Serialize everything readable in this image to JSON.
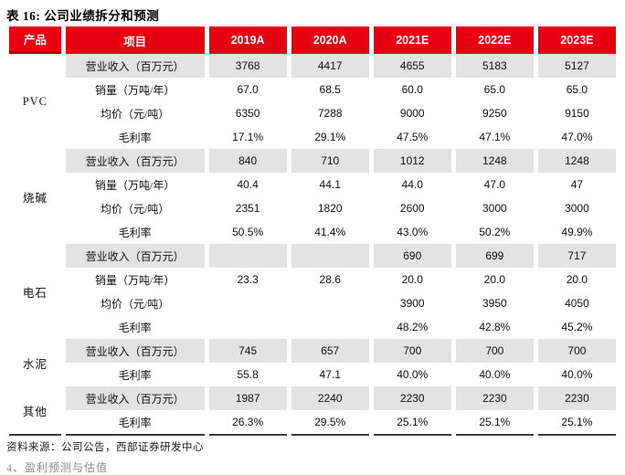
{
  "title": "表 16: 公司业绩拆分和预测",
  "colors": {
    "header_red": "#E60012",
    "header_accent_dark_red": "#A40000",
    "shaded_row": "#E3E3E3",
    "bottom_rule": "#3c3c3c"
  },
  "table": {
    "product_header": "产品",
    "item_header": "项目",
    "year_headers": [
      "2019A",
      "2020A",
      "2021E",
      "2022E",
      "2023E"
    ],
    "groups": [
      {
        "product": "PVC",
        "rows": [
          {
            "item": "营业收入（百万元）",
            "shaded": true,
            "values": [
              "3768",
              "4417",
              "4655",
              "5183",
              "5127"
            ]
          },
          {
            "item": "销量（万吨/年）",
            "shaded": false,
            "values": [
              "67.0",
              "68.5",
              "60.0",
              "65.0",
              "65.0"
            ]
          },
          {
            "item": "均价（元/吨）",
            "shaded": false,
            "values": [
              "6350",
              "7288",
              "9000",
              "9250",
              "9150"
            ]
          },
          {
            "item": "毛利率",
            "shaded": false,
            "values": [
              "17.1%",
              "29.1%",
              "47.5%",
              "47.1%",
              "47.0%"
            ]
          }
        ]
      },
      {
        "product": "烧碱",
        "rows": [
          {
            "item": "营业收入（百万元）",
            "shaded": true,
            "values": [
              "840",
              "710",
              "1012",
              "1248",
              "1248"
            ]
          },
          {
            "item": "销量（万吨/年）",
            "shaded": false,
            "values": [
              "40.4",
              "44.1",
              "44.0",
              "47.0",
              "47"
            ]
          },
          {
            "item": "均价（元/吨）",
            "shaded": false,
            "values": [
              "2351",
              "1820",
              "2600",
              "3000",
              "3000"
            ]
          },
          {
            "item": "毛利率",
            "shaded": false,
            "values": [
              "50.5%",
              "41.4%",
              "43.0%",
              "50.2%",
              "49.9%"
            ]
          }
        ]
      },
      {
        "product": "电石",
        "rows": [
          {
            "item": "营业收入（百万元）",
            "shaded": true,
            "values": [
              "",
              "",
              "690",
              "699",
              "717"
            ]
          },
          {
            "item": "销量（万吨/年）",
            "shaded": false,
            "values": [
              "23.3",
              "28.6",
              "20.0",
              "20.0",
              "20.0"
            ]
          },
          {
            "item": "均价（元/吨）",
            "shaded": false,
            "values": [
              "",
              "",
              "3900",
              "3950",
              "4050"
            ]
          },
          {
            "item": "毛利率",
            "shaded": false,
            "values": [
              "",
              "",
              "48.2%",
              "42.8%",
              "45.2%"
            ]
          }
        ]
      },
      {
        "product": "水泥",
        "rows": [
          {
            "item": "营业收入（百万元）",
            "shaded": true,
            "values": [
              "745",
              "657",
              "700",
              "700",
              "700"
            ]
          },
          {
            "item": "毛利率",
            "shaded": false,
            "values": [
              "55.8",
              "47.1",
              "40.0%",
              "40.0%",
              "40.0%"
            ]
          }
        ]
      },
      {
        "product": "其他",
        "rows": [
          {
            "item": "营业收入（百万元）",
            "shaded": true,
            "values": [
              "1987",
              "2240",
              "2230",
              "2230",
              "2230"
            ]
          },
          {
            "item": "毛利率",
            "shaded": false,
            "values": [
              "26.3%",
              "29.5%",
              "25.1%",
              "25.1%",
              "25.1%"
            ]
          }
        ]
      }
    ]
  },
  "footer": {
    "source": "资料来源：公司公告，西部证券研发中心"
  },
  "bottom_cutoff_text": "4、盈利预测与估值"
}
